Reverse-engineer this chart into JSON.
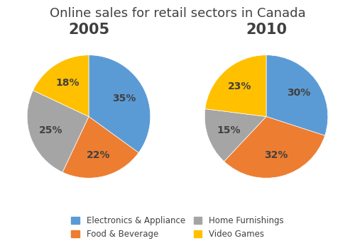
{
  "title": "Online sales for retail sectors in Canada",
  "title_fontsize": 13,
  "subtitle_2005": "2005",
  "subtitle_2010": "2010",
  "subtitle_fontsize": 15,
  "subtitle_fontweight": "bold",
  "categories": [
    "Electronics & Appliance",
    "Food & Beverage",
    "Home Furnishings",
    "Video Games"
  ],
  "colors": [
    "#5B9BD5",
    "#ED7D31",
    "#A5A5A5",
    "#FFC000"
  ],
  "values_2005": [
    35,
    22,
    25,
    18
  ],
  "values_2010": [
    30,
    32,
    15,
    23
  ],
  "labels_2005": [
    "35%",
    "22%",
    "25%",
    "18%"
  ],
  "labels_2010": [
    "30%",
    "32%",
    "15%",
    "23%"
  ],
  "legend_labels": [
    "Electronics & Appliance",
    "Food & Beverage",
    "Home Furnishings",
    "Video Games"
  ],
  "background_color": "#ffffff",
  "label_fontsize": 10,
  "label_color": "#404040"
}
